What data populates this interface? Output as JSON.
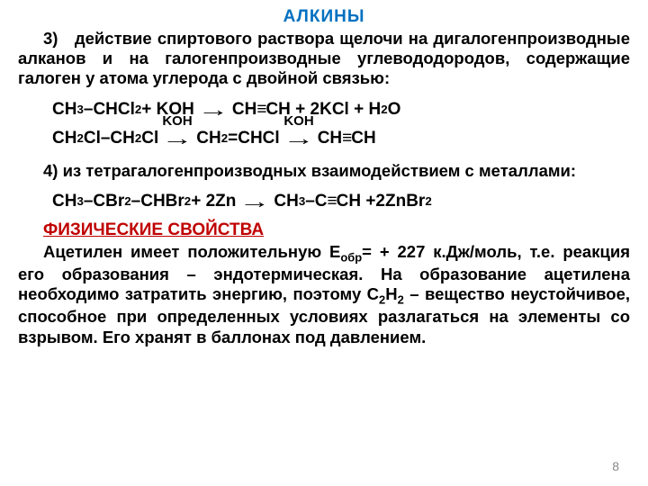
{
  "title": "АЛКИНЫ",
  "item3": {
    "num": "3)",
    "text_parts": {
      "a": "действие спиртового раствора щелочи на дигалогенпроизводные алканов и на галогенпроизводные углевододородов, содержащие галоген у атома углерода с двойной связью:"
    }
  },
  "eq1": {
    "left": "CH",
    "s3": "3",
    "dash1": "–",
    "mid1": "CHCl",
    "s2a": "2",
    "plus1": " + KOH",
    "arrow": "→",
    "r1": "CH",
    "triple": "≡",
    "r2": "CH + 2KCl + H",
    "s2b": "2",
    "r3": "O"
  },
  "eq2": {
    "p1": "CH",
    "s2a": "2",
    "p2": "Cl–CH",
    "s2b": "2",
    "p3": "Cl",
    "label1": "KOH",
    "p4": "CH",
    "s2c": "2",
    "p5": "=CHCl",
    "label2": "KOH",
    "p6": "CH",
    "triple": "≡",
    "p7": "CH"
  },
  "item4": {
    "num": "4)",
    "text": "из тетрагалогенпроизводных взаимодействием с металлами:"
  },
  "eq3": {
    "p1": "CH",
    "s3": "3",
    "p2": "–CBr",
    "s2a": "2",
    "p3": "–CHBr",
    "s2b": "2",
    "p4": "+ 2Zn",
    "arrow": "→",
    "p5": "CH",
    "s3b": "3",
    "p6": "–C",
    "triple": "≡",
    "p7": "CH  +2ZnBr",
    "s2c": "2"
  },
  "phys_heading": "ФИЗИЧЕСКИЕ СВОЙСТВА",
  "phys_text": {
    "a": "Ацетилен имеет положительную E",
    "sub1": "обр",
    "b": "= + 227 к.Дж/моль, т.е. реакция его образования – эндотермическая. На образование ацетилена необходимо затратить энергию, поэтому C",
    "sub2": "2",
    "c": "H",
    "sub3": "2",
    "d": " – вещество неустойчивое, способное при определенных условиях разлагаться на элементы со взрывом. Его хранят в баллонах под давлением."
  },
  "page": "8"
}
